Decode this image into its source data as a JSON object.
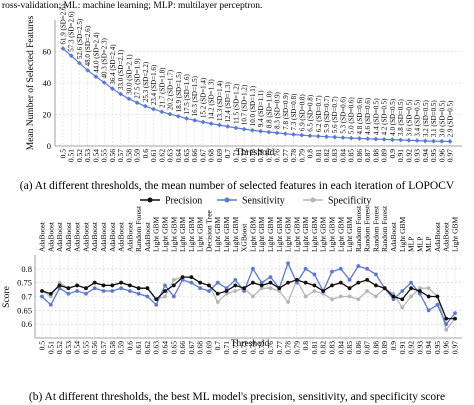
{
  "header_note": "ross-validation; ML: machine learning; MLP: multilayer perceptron.",
  "caption_a": "(a) At different thresholds, the mean number of selected features in each iteration of LOPOCV",
  "caption_b": "(b) At different thresholds, the best ML model's precision, sensitivity, and specificity score",
  "colors": {
    "precision": "#111111",
    "sensitivity": "#5b79d6",
    "specificity": "#b5b5b5",
    "features": "#5b79d6",
    "grid": "#cfcfcf"
  },
  "chart_data": [
    {
      "type": "line",
      "id": "features",
      "title": "",
      "xlabel": "Threshold",
      "ylabel": "Mean Number of Selected Features",
      "ylim": [
        0,
        80
      ],
      "yticks": [
        0,
        20,
        40,
        60
      ],
      "grid": true,
      "x": [
        "0.5",
        "0.51",
        "0.52",
        "0.53",
        "0.54",
        "0.55",
        "0.56",
        "0.57",
        "0.58",
        "0.59",
        "0.6",
        "0.61",
        "0.62",
        "0.63",
        "0.64",
        "0.65",
        "0.66",
        "0.67",
        "0.68",
        "0.69",
        "0.7",
        "0.71",
        "0.72",
        "0.73",
        "0.74",
        "0.75",
        "0.76",
        "0.77",
        "0.78",
        "0.79",
        "0.8",
        "0.81",
        "0.82",
        "0.83",
        "0.84",
        "0.85",
        "0.86",
        "0.87",
        "0.88",
        "0.89",
        "0.9",
        "0.91",
        "0.92",
        "0.93",
        "0.94",
        "0.95",
        "0.96",
        "0.97"
      ],
      "values": [
        61.9,
        57.3,
        52.6,
        48.0,
        44.0,
        40.3,
        36.4,
        33.0,
        30.0,
        27.5,
        25.3,
        23.4,
        21.7,
        20.2,
        18.9,
        17.5,
        16.3,
        15.2,
        14.2,
        13.3,
        12.4,
        11.5,
        10.7,
        10.0,
        9.4,
        8.8,
        8.3,
        7.8,
        7.3,
        6.9,
        6.5,
        6.2,
        5.9,
        5.6,
        5.3,
        5.0,
        4.8,
        4.6,
        4.4,
        4.2,
        4.0,
        3.8,
        3.6,
        3.4,
        3.2,
        3.1,
        3.0,
        2.9
      ],
      "data_labels": [
        "61.9 (SD=2.6)",
        "57.3 (SD=2.6)",
        "52.6 (SD=2.5)",
        "48.0 (SD=2.6)",
        "44.0 (SD=2.4)",
        "40.3 (SD=2.3)",
        "36.4 (SD=2.4)",
        "33.0 (SD=2.1)",
        "30.0 (SD=2.1)",
        "27.5 (SD=1.9)",
        "25.3 (SD=2.2)",
        "23.4 (SD=1.6)",
        "21.7 (SD=1.8)",
        "20.2 (SD=1.7)",
        "18.9 (SD=1.5)",
        "17.5 (SD=1.6)",
        "16.3 (SD=1.5)",
        "15.2 (SD=1.4)",
        "14.2 (SD=1.3)",
        "13.3 (SD=1.4)",
        "12.4 (SD=1.3)",
        "11.5 (SD=1.2)",
        "10.7 (SD=1.2)",
        "10.0 (SD=1.1)",
        "9.4 (SD=1.1)",
        "8.8 (SD=1.0)",
        "8.3 (SD=0.9)",
        "7.8 (SD=0.9)",
        "7.3 (SD=0.8)",
        "6.9 (SD=0.8)",
        "6.5 (SD=0.8)",
        "6.2 (SD=0.7)",
        "5.9 (SD=0.7)",
        "5.6 (SD=0.7)",
        "5.3 (SD=0.6)",
        "5.0 (SD=0.6)",
        "4.8 (SD=0.6)",
        "4.6 (SD=0.6)",
        "4.4 (SD=0.5)",
        "4.2 (SD=0.5)",
        "4.0 (SD=0.5)",
        "3.8 (SD=0.5)",
        "3.6 (SD=0.5)",
        "3.4 (SD=0.5)",
        "3.2 (SD=0.5)",
        "3.1 (SD=0.5)",
        "3.0 (SD=0.5)",
        "2.9 (SD=0.5)"
      ]
    },
    {
      "type": "line",
      "id": "scores",
      "title": "",
      "xlabel": "Threshold",
      "ylabel": "Score",
      "ylim": [
        0.55,
        0.85
      ],
      "yticks": [
        0.6,
        0.65,
        0.7,
        0.75,
        0.8
      ],
      "grid": true,
      "legend_position": "top",
      "x": [
        "0.5",
        "0.51",
        "0.52",
        "0.53",
        "0.54",
        "0.55",
        "0.56",
        "0.57",
        "0.58",
        "0.59",
        "0.6",
        "0.61",
        "0.62",
        "0.63",
        "0.64",
        "0.65",
        "0.66",
        "0.67",
        "0.68",
        "0.69",
        "0.7",
        "0.71",
        "0.72",
        "0.73",
        "0.74",
        "0.75",
        "0.76",
        "0.77",
        "0.78",
        "0.79",
        "0.8",
        "0.81",
        "0.82",
        "0.83",
        "0.84",
        "0.85",
        "0.86",
        "0.87",
        "0.88",
        "0.89",
        "0.9",
        "0.91",
        "0.92",
        "0.93",
        "0.94",
        "0.95",
        "0.96",
        "0.97"
      ],
      "models": [
        "AdaBoost",
        "AdaBoost",
        "AdaBoost",
        "AdaBoost",
        "AdaBoost",
        "AdaBoost",
        "AdaBoost",
        "AdaBoost",
        "AdaBoost",
        "AdaBoost",
        "AdaBoost",
        "Random Forest",
        "AdaBoost",
        "Light GBM",
        "Light GBM",
        "Light GBM",
        "Light GBM",
        "Light GBM",
        "Light GBM",
        "Decision Tree",
        "Light GBM",
        "Light GBM",
        "Light GBM",
        "XGBoost",
        "Light GBM",
        "Light GBM",
        "Light GBM",
        "Light GBM",
        "Light GBM",
        "Light GBM",
        "Light GBM",
        "Light GBM",
        "Light GBM",
        "Light GBM",
        "Light GBM",
        "Light GBM",
        "Random Forest",
        "Random Forest",
        "Random Forest",
        "Random Forest",
        "AdaBoost",
        "Light GBM",
        "MLP",
        "MLP",
        "MLP",
        "AdaBoost",
        "AdaBoost",
        "Light GBM"
      ],
      "series": [
        {
          "name": "Precision",
          "values": [
            0.72,
            0.71,
            0.74,
            0.73,
            0.74,
            0.73,
            0.75,
            0.74,
            0.74,
            0.75,
            0.74,
            0.73,
            0.73,
            0.69,
            0.72,
            0.74,
            0.77,
            0.77,
            0.75,
            0.74,
            0.71,
            0.72,
            0.74,
            0.73,
            0.75,
            0.74,
            0.75,
            0.73,
            0.75,
            0.76,
            0.75,
            0.74,
            0.72,
            0.74,
            0.75,
            0.73,
            0.75,
            0.76,
            0.74,
            0.73,
            0.7,
            0.69,
            0.73,
            0.72,
            0.7,
            0.7,
            0.62,
            0.62
          ]
        },
        {
          "name": "Sensitivity",
          "values": [
            0.7,
            0.67,
            0.73,
            0.71,
            0.72,
            0.71,
            0.73,
            0.72,
            0.72,
            0.73,
            0.72,
            0.71,
            0.7,
            0.67,
            0.74,
            0.7,
            0.76,
            0.75,
            0.73,
            0.72,
            0.75,
            0.73,
            0.76,
            0.72,
            0.8,
            0.75,
            0.77,
            0.73,
            0.82,
            0.75,
            0.8,
            0.78,
            0.72,
            0.79,
            0.8,
            0.76,
            0.81,
            0.8,
            0.78,
            0.73,
            0.69,
            0.72,
            0.75,
            0.71,
            0.65,
            0.67,
            0.6,
            0.64
          ]
        },
        {
          "name": "Specificity",
          "values": [
            0.72,
            0.7,
            0.75,
            0.73,
            0.74,
            0.73,
            0.75,
            0.74,
            0.74,
            0.75,
            0.74,
            0.73,
            0.73,
            0.69,
            0.7,
            0.76,
            0.77,
            0.77,
            0.75,
            0.74,
            0.68,
            0.71,
            0.72,
            0.73,
            0.7,
            0.73,
            0.73,
            0.72,
            0.68,
            0.76,
            0.7,
            0.72,
            0.71,
            0.69,
            0.7,
            0.7,
            0.69,
            0.72,
            0.7,
            0.73,
            0.71,
            0.66,
            0.7,
            0.73,
            0.73,
            0.7,
            0.58,
            0.62
          ]
        }
      ]
    }
  ]
}
